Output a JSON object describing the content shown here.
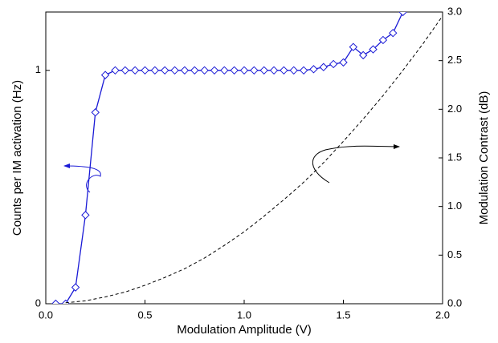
{
  "chart_data": {
    "type": "line",
    "xlabel": "Modulation Amplitude (V)",
    "ylabel": "Counts per IM activation (Hz)",
    "y2label": "Modulation Contrast (dB)",
    "xlim": [
      0,
      2
    ],
    "xticks": [
      {
        "value": 0,
        "label": "0.0"
      },
      {
        "value": 0.5,
        "label": "0.5"
      },
      {
        "value": 1,
        "label": "1.0"
      },
      {
        "value": 1.5,
        "label": "1.5"
      },
      {
        "value": 2,
        "label": "2.0"
      }
    ],
    "ylim": [
      0,
      1.25
    ],
    "yticks": [
      0,
      1
    ],
    "y2lim": [
      0,
      3
    ],
    "y2ticks": [
      {
        "value": 0,
        "label": "0.0"
      },
      {
        "value": 0.5,
        "label": "0.5"
      },
      {
        "value": 1,
        "label": "1.0"
      },
      {
        "value": 1.5,
        "label": "1.5"
      },
      {
        "value": 2,
        "label": "2.0"
      },
      {
        "value": 2.5,
        "label": "2.5"
      },
      {
        "value": 3,
        "label": "3.0"
      }
    ],
    "series": [
      {
        "color": "#1a1ad6",
        "marker": "diamond",
        "line_style": "solid",
        "x": [
          0.05,
          0.1,
          0.15,
          0.2,
          0.25,
          0.3,
          0.35,
          0.4,
          0.45,
          0.5,
          0.55,
          0.6,
          0.65,
          0.7,
          0.75,
          0.8,
          0.85,
          0.9,
          0.95,
          1.0,
          1.05,
          1.1,
          1.15,
          1.2,
          1.25,
          1.3,
          1.35,
          1.4,
          1.45,
          1.5,
          1.55,
          1.6,
          1.65,
          1.7,
          1.75,
          1.8
        ],
        "values": [
          0,
          0,
          0.07,
          0.38,
          0.82,
          0.98,
          1.0,
          1.0,
          1.0,
          1.0,
          1.0,
          1.0,
          1.0,
          1.0,
          1.0,
          1.0,
          1.0,
          1.0,
          1.0,
          1.0,
          1.0,
          1.0,
          1.0,
          1.0,
          1.0,
          1.0,
          1.005,
          1.014,
          1.027,
          1.034,
          1.1,
          1.065,
          1.09,
          1.13,
          1.16,
          1.25
        ]
      },
      {
        "color": "#000000",
        "line_style": "dashed",
        "axis": "y2",
        "x": [
          0.1,
          0.2,
          0.3,
          0.4,
          0.5,
          0.6,
          0.7,
          0.8,
          0.9,
          1.0,
          1.1,
          1.2,
          1.3,
          1.4,
          1.5,
          1.6,
          1.7,
          1.8,
          1.9,
          2.0
        ],
        "values": [
          0.01,
          0.03,
          0.07,
          0.12,
          0.19,
          0.27,
          0.36,
          0.47,
          0.6,
          0.74,
          0.9,
          1.07,
          1.25,
          1.45,
          1.67,
          1.9,
          2.14,
          2.4,
          2.67,
          2.96
        ]
      }
    ]
  }
}
